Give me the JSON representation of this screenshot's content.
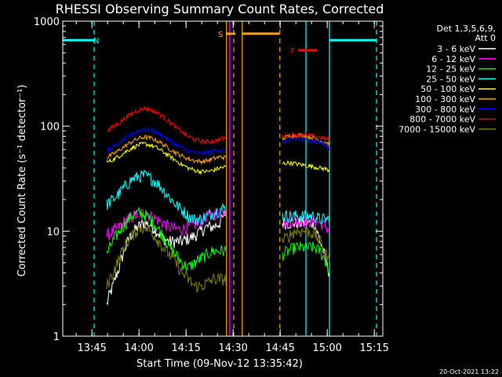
{
  "chart_data": {
    "type": "line",
    "title": "RHESSI Observing Summary Count Rates, Corrected",
    "xlabel": "Start Time (09-Nov-12 13:35:42)",
    "ylabel": "Corrected Count Rate (s⁻¹ detector⁻¹)",
    "x_unit": "minutes after 13:35:42",
    "xlim": [
      0,
      102
    ],
    "ylim": [
      1,
      1000
    ],
    "y_scale": "log",
    "x_ticks": [
      {
        "label": "13:45",
        "value": 9.3
      },
      {
        "label": "14:00",
        "value": 24.3
      },
      {
        "label": "14:15",
        "value": 39.3
      },
      {
        "label": "14:30",
        "value": 54.3
      },
      {
        "label": "14:45",
        "value": 69.3
      },
      {
        "label": "15:00",
        "value": 84.3
      },
      {
        "label": "15:15",
        "value": 99.3
      }
    ],
    "y_ticks": [
      {
        "label": "1",
        "value": 1
      },
      {
        "label": "10",
        "value": 10
      },
      {
        "label": "100",
        "value": 100
      },
      {
        "label": "1000",
        "value": 1000
      }
    ],
    "legend_header": [
      "Det 1,3,5,6,9,",
      "Att 0"
    ],
    "legend_position": "right",
    "segments": [
      [
        14,
        52
      ],
      [
        70,
        85
      ]
    ],
    "series": [
      {
        "name": "3 - 6 keV",
        "color": "#ffffff",
        "points": [
          [
            14,
            2
          ],
          [
            16,
            3
          ],
          [
            18,
            4.5
          ],
          [
            20,
            7
          ],
          [
            22,
            9.5
          ],
          [
            24,
            11
          ],
          [
            26,
            12
          ],
          [
            28,
            11.5
          ],
          [
            30,
            10
          ],
          [
            32,
            8.5
          ],
          [
            34,
            8
          ],
          [
            36,
            8
          ],
          [
            38,
            8
          ],
          [
            40,
            8.5
          ],
          [
            42,
            9
          ],
          [
            44,
            10
          ],
          [
            46,
            11
          ],
          [
            48,
            11
          ],
          [
            50,
            12
          ],
          [
            52,
            15
          ],
          [
            70,
            12
          ],
          [
            72,
            12
          ],
          [
            74,
            12
          ],
          [
            76,
            12
          ],
          [
            78,
            12
          ],
          [
            80,
            12
          ],
          [
            82,
            8
          ],
          [
            84,
            5
          ],
          [
            85,
            4
          ]
        ]
      },
      {
        "name": "6 - 12 keV",
        "color": "#ff00ff",
        "points": [
          [
            14,
            9
          ],
          [
            16,
            10
          ],
          [
            18,
            11
          ],
          [
            20,
            12.5
          ],
          [
            22,
            13.5
          ],
          [
            24,
            14.5
          ],
          [
            26,
            15
          ],
          [
            28,
            14
          ],
          [
            30,
            13
          ],
          [
            32,
            12
          ],
          [
            34,
            11
          ],
          [
            36,
            10.5
          ],
          [
            38,
            10.5
          ],
          [
            40,
            11
          ],
          [
            42,
            11.5
          ],
          [
            44,
            12.5
          ],
          [
            46,
            14
          ],
          [
            48,
            14.5
          ],
          [
            50,
            15
          ],
          [
            52,
            16
          ],
          [
            70,
            12
          ],
          [
            72,
            12.5
          ],
          [
            74,
            12.5
          ],
          [
            76,
            12.5
          ],
          [
            78,
            12.5
          ],
          [
            80,
            12.5
          ],
          [
            82,
            12
          ],
          [
            84,
            11
          ],
          [
            85,
            10
          ]
        ]
      },
      {
        "name": "12 - 25 keV",
        "color": "#00ff00",
        "points": [
          [
            14,
            6
          ],
          [
            16,
            8
          ],
          [
            18,
            10
          ],
          [
            20,
            12
          ],
          [
            22,
            14
          ],
          [
            24,
            15
          ],
          [
            26,
            14.5
          ],
          [
            28,
            13
          ],
          [
            30,
            11
          ],
          [
            32,
            9
          ],
          [
            34,
            7
          ],
          [
            36,
            6
          ],
          [
            38,
            5
          ],
          [
            40,
            4.5
          ],
          [
            42,
            5
          ],
          [
            44,
            5.5
          ],
          [
            46,
            6
          ],
          [
            48,
            6.5
          ],
          [
            50,
            6.5
          ],
          [
            52,
            6.5
          ],
          [
            70,
            6
          ],
          [
            72,
            6.5
          ],
          [
            74,
            7
          ],
          [
            76,
            7
          ],
          [
            78,
            7
          ],
          [
            80,
            7
          ],
          [
            82,
            6.5
          ],
          [
            84,
            5
          ],
          [
            85,
            4
          ]
        ]
      },
      {
        "name": "25 - 50 keV",
        "color": "#00ffff",
        "points": [
          [
            14,
            18
          ],
          [
            16,
            20
          ],
          [
            18,
            23
          ],
          [
            20,
            27
          ],
          [
            22,
            31
          ],
          [
            24,
            33
          ],
          [
            26,
            34
          ],
          [
            28,
            32
          ],
          [
            30,
            29
          ],
          [
            32,
            25
          ],
          [
            34,
            21
          ],
          [
            36,
            18
          ],
          [
            38,
            16
          ],
          [
            40,
            14
          ],
          [
            42,
            13
          ],
          [
            44,
            13
          ],
          [
            46,
            14
          ],
          [
            48,
            15
          ],
          [
            50,
            16
          ],
          [
            52,
            17
          ],
          [
            70,
            14
          ],
          [
            72,
            14
          ],
          [
            74,
            14
          ],
          [
            76,
            14
          ],
          [
            78,
            14
          ],
          [
            80,
            14
          ],
          [
            82,
            13
          ],
          [
            84,
            13
          ],
          [
            85,
            13
          ]
        ]
      },
      {
        "name": "50 - 100 keV",
        "color": "#ffff00",
        "points": [
          [
            14,
            45
          ],
          [
            16,
            48
          ],
          [
            18,
            52
          ],
          [
            20,
            57
          ],
          [
            22,
            62
          ],
          [
            24,
            66
          ],
          [
            26,
            68
          ],
          [
            28,
            66
          ],
          [
            30,
            62
          ],
          [
            32,
            57
          ],
          [
            34,
            52
          ],
          [
            36,
            47
          ],
          [
            38,
            43
          ],
          [
            40,
            40
          ],
          [
            42,
            38
          ],
          [
            44,
            37
          ],
          [
            46,
            37
          ],
          [
            48,
            38
          ],
          [
            50,
            40
          ],
          [
            52,
            41
          ],
          [
            70,
            44
          ],
          [
            72,
            45
          ],
          [
            74,
            44
          ],
          [
            76,
            43
          ],
          [
            78,
            42
          ],
          [
            80,
            41
          ],
          [
            82,
            40
          ],
          [
            84,
            39
          ],
          [
            85,
            38
          ]
        ]
      },
      {
        "name": "100 - 300 keV",
        "color": "#ffa500",
        "points": [
          [
            14,
            50
          ],
          [
            16,
            54
          ],
          [
            18,
            59
          ],
          [
            20,
            65
          ],
          [
            22,
            71
          ],
          [
            24,
            76
          ],
          [
            26,
            79
          ],
          [
            28,
            77
          ],
          [
            30,
            73
          ],
          [
            32,
            67
          ],
          [
            34,
            61
          ],
          [
            36,
            56
          ],
          [
            38,
            52
          ],
          [
            40,
            49
          ],
          [
            42,
            47
          ],
          [
            44,
            46
          ],
          [
            46,
            47
          ],
          [
            48,
            49
          ],
          [
            50,
            51
          ],
          [
            52,
            50
          ],
          [
            70,
            76
          ],
          [
            72,
            80
          ],
          [
            74,
            82
          ],
          [
            76,
            82
          ],
          [
            78,
            80
          ],
          [
            80,
            77
          ],
          [
            82,
            73
          ],
          [
            84,
            70
          ],
          [
            85,
            68
          ]
        ]
      },
      {
        "name": "300 - 800 keV",
        "color": "#0000ff",
        "points": [
          [
            14,
            58
          ],
          [
            16,
            63
          ],
          [
            18,
            69
          ],
          [
            20,
            76
          ],
          [
            22,
            84
          ],
          [
            24,
            90
          ],
          [
            26,
            94
          ],
          [
            28,
            92
          ],
          [
            30,
            87
          ],
          [
            32,
            80
          ],
          [
            34,
            73
          ],
          [
            36,
            67
          ],
          [
            38,
            62
          ],
          [
            40,
            58
          ],
          [
            42,
            56
          ],
          [
            44,
            55
          ],
          [
            46,
            56
          ],
          [
            48,
            58
          ],
          [
            50,
            60
          ],
          [
            52,
            58
          ],
          [
            70,
            70
          ],
          [
            72,
            73
          ],
          [
            74,
            75
          ],
          [
            76,
            75
          ],
          [
            78,
            74
          ],
          [
            80,
            72
          ],
          [
            82,
            70
          ],
          [
            84,
            65
          ],
          [
            85,
            60
          ]
        ]
      },
      {
        "name": "800 - 7000 keV",
        "color": "#ff0000",
        "points": [
          [
            14,
            90
          ],
          [
            16,
            98
          ],
          [
            18,
            108
          ],
          [
            20,
            120
          ],
          [
            22,
            132
          ],
          [
            24,
            142
          ],
          [
            26,
            148
          ],
          [
            28,
            144
          ],
          [
            30,
            135
          ],
          [
            32,
            123
          ],
          [
            34,
            110
          ],
          [
            36,
            98
          ],
          [
            38,
            88
          ],
          [
            40,
            80
          ],
          [
            42,
            75
          ],
          [
            44,
            72
          ],
          [
            46,
            71
          ],
          [
            48,
            72
          ],
          [
            50,
            75
          ],
          [
            52,
            78
          ],
          [
            70,
            80
          ],
          [
            72,
            82
          ],
          [
            74,
            83
          ],
          [
            76,
            83
          ],
          [
            78,
            82
          ],
          [
            80,
            80
          ],
          [
            82,
            78
          ],
          [
            84,
            76
          ],
          [
            85,
            75
          ]
        ]
      },
      {
        "name": "7000 - 15000 keV",
        "color": "#808000",
        "points": [
          [
            14,
            3
          ],
          [
            16,
            4
          ],
          [
            18,
            5.5
          ],
          [
            20,
            7.5
          ],
          [
            22,
            9
          ],
          [
            24,
            10.5
          ],
          [
            26,
            11
          ],
          [
            28,
            10
          ],
          [
            30,
            8.5
          ],
          [
            32,
            7
          ],
          [
            34,
            6
          ],
          [
            36,
            5
          ],
          [
            38,
            4
          ],
          [
            40,
            3.5
          ],
          [
            42,
            3
          ],
          [
            44,
            3
          ],
          [
            46,
            3.2
          ],
          [
            48,
            3.5
          ],
          [
            50,
            3.5
          ],
          [
            52,
            3.5
          ],
          [
            70,
            8
          ],
          [
            72,
            9
          ],
          [
            74,
            10
          ],
          [
            76,
            10
          ],
          [
            78,
            10
          ],
          [
            80,
            9.5
          ],
          [
            82,
            8
          ],
          [
            84,
            6
          ],
          [
            85,
            5
          ]
        ]
      }
    ],
    "flag_bars": [
      {
        "label": "N",
        "color": "#00ffff",
        "x_start": 0,
        "x_end": 10,
        "y": 660
      },
      {
        "label": "N",
        "color": "#00ffff",
        "x_start": 85,
        "x_end": 100,
        "y": 660
      },
      {
        "label": "S",
        "color": "#ffa500",
        "x_start": 52,
        "x_end": 55,
        "y": 760
      },
      {
        "label": "S",
        "color": "#ffa500",
        "x_start": 57,
        "x_end": 69,
        "y": 760
      },
      {
        "label": "F",
        "color": "#ff0000",
        "x_start": 75,
        "x_end": 81,
        "y": 530
      }
    ],
    "bar_labels": [
      {
        "text": "N",
        "color": "#00ffff",
        "x": 10.7,
        "y": 660
      },
      {
        "text": "S",
        "color": "#ffa500",
        "x": 50.3,
        "y": 760
      },
      {
        "text": "F",
        "color": "#ff0000",
        "x": 73.3,
        "y": 530
      }
    ],
    "vertical_markers": [
      {
        "x": 10,
        "color": "#00ffff",
        "style": "dashed"
      },
      {
        "x": 85,
        "color": "#00ffff",
        "style": "solid"
      },
      {
        "x": 100,
        "color": "#00ffff",
        "style": "dashed"
      },
      {
        "x": 52.2,
        "color": "#ffa500",
        "style": "solid"
      },
      {
        "x": 54.5,
        "color": "#ffa500",
        "style": "dashed"
      },
      {
        "x": 57.2,
        "color": "#ffa500",
        "style": "solid"
      },
      {
        "x": 69.2,
        "color": "#ffa500",
        "style": "dashed"
      },
      {
        "x": 53.2,
        "color": "#ff00ff",
        "style": "solid"
      },
      {
        "x": 77.5,
        "color": "#00ffff",
        "style": "solid"
      }
    ],
    "timestamp": "20-Oct-2021 13:22"
  }
}
